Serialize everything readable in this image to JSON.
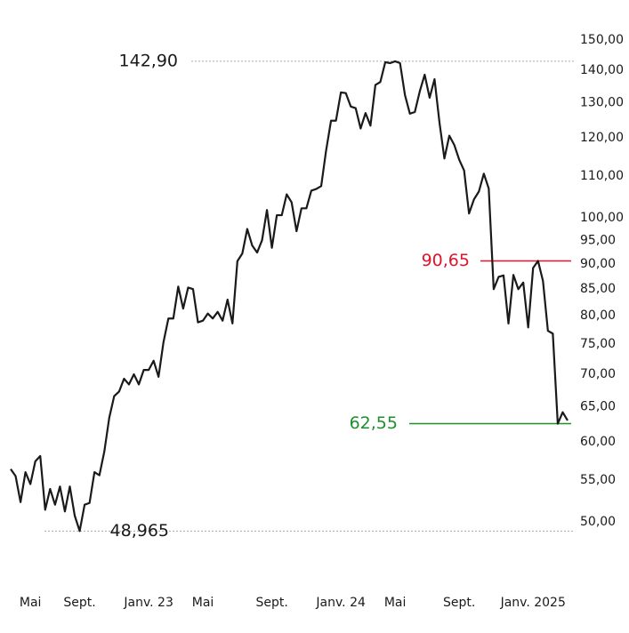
{
  "chart_data": {
    "type": "line",
    "log_scale": true,
    "ylim": [
      50,
      150
    ],
    "yticks": [
      {
        "value": 50,
        "label": "50,00"
      },
      {
        "value": 55,
        "label": "55,00"
      },
      {
        "value": 60,
        "label": "60,00"
      },
      {
        "value": 65,
        "label": "65,00"
      },
      {
        "value": 70,
        "label": "70,00"
      },
      {
        "value": 75,
        "label": "75,00"
      },
      {
        "value": 80,
        "label": "80,00"
      },
      {
        "value": 85,
        "label": "85,00"
      },
      {
        "value": 90,
        "label": "90,00"
      },
      {
        "value": 95,
        "label": "95,00"
      },
      {
        "value": 100,
        "label": "100,00"
      },
      {
        "value": 110,
        "label": "110,00"
      },
      {
        "value": 120,
        "label": "120,00"
      },
      {
        "value": 130,
        "label": "130,00"
      },
      {
        "value": 140,
        "label": "140,00"
      },
      {
        "value": 150,
        "label": "150,00"
      }
    ],
    "categories": [
      null,
      null,
      null,
      null,
      "Mai",
      null,
      null,
      null,
      null,
      null,
      null,
      null,
      null,
      null,
      "Sept.",
      null,
      null,
      null,
      null,
      null,
      null,
      null,
      null,
      null,
      null,
      null,
      null,
      null,
      "Janv. 23",
      null,
      null,
      null,
      null,
      null,
      null,
      null,
      null,
      null,
      null,
      "Mai",
      null,
      null,
      null,
      null,
      null,
      null,
      null,
      null,
      null,
      null,
      null,
      null,
      null,
      "Sept.",
      null,
      null,
      null,
      null,
      null,
      null,
      null,
      null,
      null,
      null,
      null,
      null,
      null,
      "Janv. 24",
      null,
      null,
      null,
      null,
      null,
      null,
      null,
      null,
      null,
      null,
      "Mai",
      null,
      null,
      null,
      null,
      null,
      null,
      null,
      null,
      null,
      null,
      null,
      null,
      "Sept.",
      null,
      null,
      null,
      null,
      null,
      null,
      null,
      null,
      null,
      null,
      null,
      null,
      null,
      null,
      "Janv. 2025",
      null,
      null,
      null,
      null,
      null,
      null,
      null
    ],
    "series": [
      {
        "color": "#1a1a1a",
        "values": [
          56.4,
          55.5,
          52.3,
          56.0,
          54.5,
          57.4,
          58.1,
          51.4,
          53.9,
          52.0,
          54.2,
          51.2,
          54.2,
          50.7,
          48.965,
          52.0,
          52.2,
          56.0,
          55.6,
          58.7,
          63.4,
          66.6,
          67.3,
          69.3,
          68.4,
          70.0,
          68.4,
          70.7,
          70.7,
          72.2,
          69.6,
          75.3,
          79.5,
          79.5,
          85.5,
          81.3,
          85.3,
          85.0,
          78.8,
          79.1,
          80.4,
          79.5,
          80.7,
          79.1,
          83.0,
          78.6,
          90.6,
          92.2,
          97.5,
          93.9,
          92.4,
          95.0,
          101.8,
          93.4,
          100.6,
          100.6,
          105.5,
          103.6,
          97.0,
          102.2,
          102.2,
          106.4,
          106.8,
          107.5,
          116.6,
          124.8,
          124.8,
          133.1,
          132.9,
          128.9,
          128.4,
          122.6,
          127.0,
          123.4,
          135.4,
          136.3,
          142.6,
          142.3,
          142.9,
          142.3,
          132.3,
          126.8,
          127.3,
          133.4,
          138.6,
          131.5,
          137.2,
          124.3,
          114.5,
          120.6,
          118.1,
          114.2,
          111.4,
          101.0,
          104.3,
          106.2,
          110.6,
          106.9,
          85.0,
          87.4,
          87.7,
          78.6,
          87.8,
          85.0,
          86.3,
          77.9,
          89.2,
          90.65,
          86.6,
          77.3,
          76.8,
          62.55,
          64.2,
          63.0
        ]
      }
    ],
    "annotations": [
      {
        "value": 142.9,
        "label": "142,90",
        "color": "#1a1a1a",
        "line_color": "#aaaaaa",
        "dashed": true
      },
      {
        "value": 48.965,
        "label": "48,965",
        "color": "#1a1a1a",
        "line_color": "#aaaaaa",
        "dashed": true
      },
      {
        "value": 90.65,
        "label": "90,65",
        "color": "#e0142a",
        "line_color": "#e0142a",
        "dashed": false
      },
      {
        "value": 62.55,
        "label": "62,55",
        "color": "#1e8f2c",
        "line_color": "#1e8f2c",
        "dashed": false
      }
    ]
  }
}
